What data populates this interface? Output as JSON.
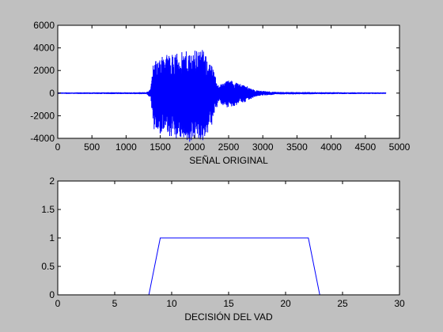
{
  "figure": {
    "background": "#c0c0c0",
    "axes_background": "#ffffff",
    "line_color": "#0000ff"
  },
  "chart_data": [
    {
      "type": "line",
      "title": "",
      "xlabel": "SEÑAL ORIGINAL",
      "ylabel": "",
      "xlim": [
        0,
        5000
      ],
      "ylim": [
        -4000,
        6000
      ],
      "xticks": [
        0,
        500,
        1000,
        1500,
        2000,
        2500,
        3000,
        3500,
        4000,
        4500,
        5000
      ],
      "yticks": [
        -4000,
        -2000,
        0,
        2000,
        4000,
        6000
      ],
      "grid": false,
      "legend": "none",
      "series": [
        {
          "color": "#0000ff",
          "x_range": [
            0,
            4800
          ],
          "envelope": [
            {
              "x": 0,
              "amp": 60
            },
            {
              "x": 1300,
              "amp": 80
            },
            {
              "x": 1360,
              "amp": 400
            },
            {
              "x": 1400,
              "amp": 2800
            },
            {
              "x": 1550,
              "amp": 3400
            },
            {
              "x": 1800,
              "amp": 3600
            },
            {
              "x": 2100,
              "amp": 4000
            },
            {
              "x": 2250,
              "amp": 2500
            },
            {
              "x": 2350,
              "amp": 700
            },
            {
              "x": 2500,
              "amp": 1200
            },
            {
              "x": 2700,
              "amp": 800
            },
            {
              "x": 2900,
              "amp": 250
            },
            {
              "x": 3200,
              "amp": 100
            },
            {
              "x": 4800,
              "amp": 60
            }
          ]
        }
      ]
    },
    {
      "type": "line",
      "title": "",
      "xlabel": "DECISIÓN DEL VAD",
      "ylabel": "",
      "xlim": [
        0,
        30
      ],
      "ylim": [
        0,
        2
      ],
      "xticks": [
        0,
        5,
        10,
        15,
        20,
        25,
        30
      ],
      "yticks": [
        0,
        0.5,
        1,
        1.5,
        2
      ],
      "grid": false,
      "legend": "none",
      "series": [
        {
          "color": "#0000ff",
          "x": [
            0,
            8,
            9,
            22,
            23,
            30
          ],
          "y": [
            0,
            0,
            1,
            1,
            0,
            0
          ]
        }
      ]
    }
  ]
}
